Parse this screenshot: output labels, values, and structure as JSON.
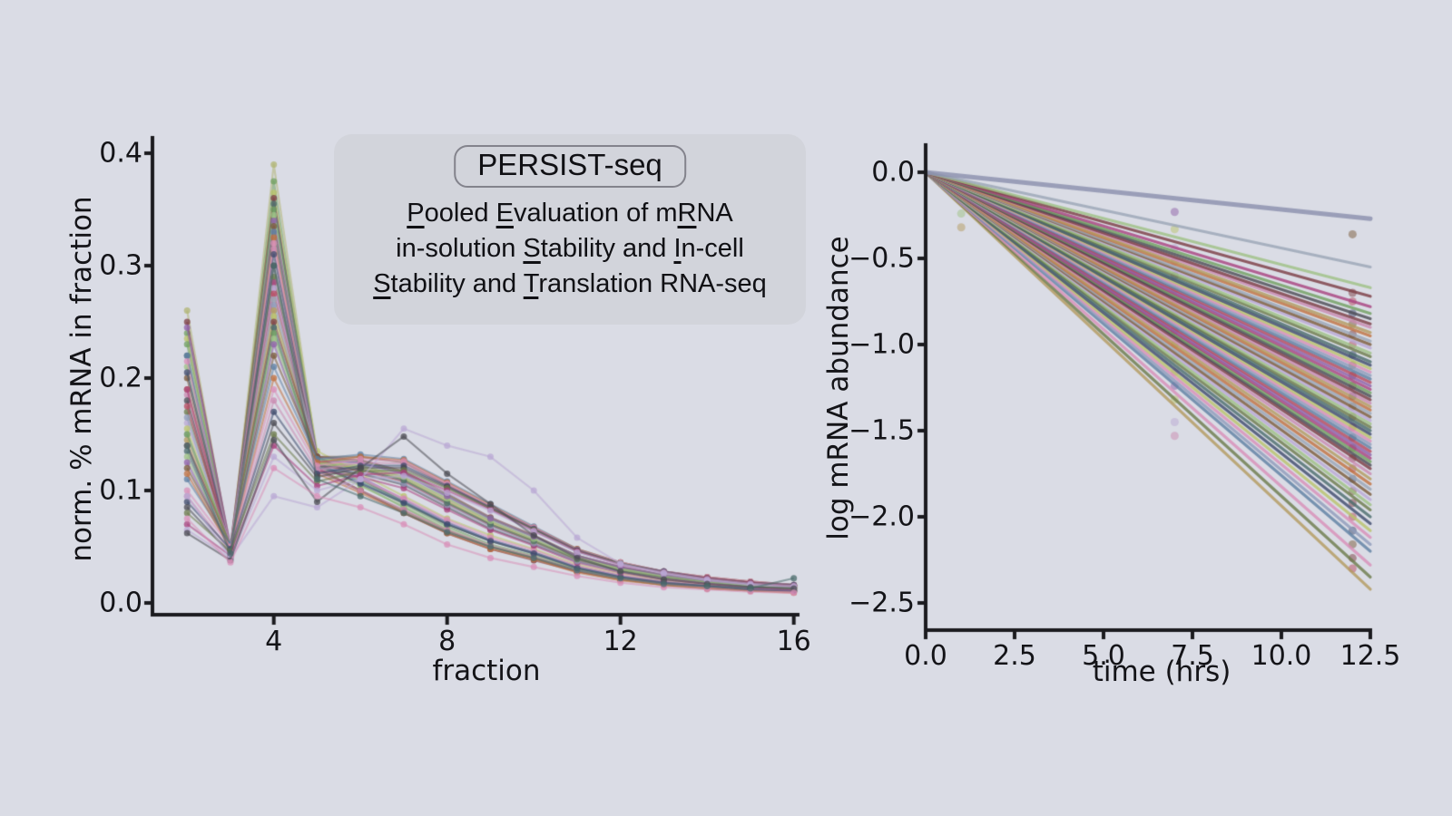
{
  "page": {
    "background": "#dadce5",
    "text_color": "#141418",
    "axis_color": "#1b1b1f"
  },
  "title_card": {
    "badge": "PERSIST-seq",
    "subtitle_lines": [
      "_P_ooled _E_valuation of m_R_NA",
      "in-solution _S_tability and _I_n-cell",
      "_S_tability and _T_ranslation RNA-seq"
    ],
    "card_bg": "#d2d4db",
    "badge_border": "#83838c"
  },
  "palette": [
    "#8f9bba",
    "#7b3b42",
    "#9dc183",
    "#5e7fa3",
    "#c98ab0",
    "#6b7a4a",
    "#b5485d",
    "#b39a5e",
    "#4a6b6b",
    "#8d5fa8",
    "#c0703f",
    "#3d4a6b",
    "#a8417e",
    "#9aa5b5",
    "#b9c36a",
    "#6f9f5f",
    "#7a5a3a",
    "#d88fb8",
    "#4a4a52",
    "#b9a8d4"
  ],
  "chart_data": [
    {
      "type": "line",
      "title": "",
      "xlabel": "fraction",
      "ylabel": "norm. % mRNA in fraction",
      "x": [
        2,
        3,
        4,
        5,
        6,
        7,
        8,
        9,
        10,
        11,
        12,
        13,
        14,
        15,
        16
      ],
      "xlim": [
        1.2,
        16.3
      ],
      "ylim": [
        0,
        0.4
      ],
      "grid": false,
      "xticks": [
        4,
        8,
        12,
        16
      ],
      "xtick_labels": [
        "4",
        "8",
        "12",
        "16"
      ],
      "yticks": [
        0,
        0.1,
        0.2,
        0.3,
        0.4
      ],
      "ytick_labels": [
        "0.0",
        "0.1",
        "0.2",
        "0.3",
        "0.4"
      ],
      "series": [
        [
          0.26,
          0.045,
          0.39,
          0.13,
          0.11,
          0.09,
          0.07,
          0.055,
          0.045,
          0.032,
          0.024,
          0.019,
          0.016,
          0.013,
          0.012
        ],
        [
          0.24,
          0.042,
          0.375,
          0.125,
          0.105,
          0.085,
          0.065,
          0.05,
          0.04,
          0.03,
          0.022,
          0.018,
          0.015,
          0.012,
          0.011
        ],
        [
          0.235,
          0.048,
          0.365,
          0.135,
          0.115,
          0.095,
          0.075,
          0.06,
          0.048,
          0.034,
          0.026,
          0.02,
          0.017,
          0.014,
          0.012
        ],
        [
          0.25,
          0.05,
          0.36,
          0.12,
          0.1,
          0.08,
          0.062,
          0.048,
          0.038,
          0.028,
          0.021,
          0.017,
          0.014,
          0.012,
          0.01
        ],
        [
          0.22,
          0.04,
          0.355,
          0.13,
          0.11,
          0.09,
          0.07,
          0.055,
          0.044,
          0.031,
          0.023,
          0.018,
          0.015,
          0.012,
          0.011
        ],
        [
          0.23,
          0.046,
          0.35,
          0.128,
          0.108,
          0.088,
          0.068,
          0.052,
          0.042,
          0.03,
          0.022,
          0.017,
          0.014,
          0.012,
          0.01
        ],
        [
          0.21,
          0.043,
          0.345,
          0.122,
          0.104,
          0.086,
          0.066,
          0.051,
          0.041,
          0.029,
          0.021,
          0.016,
          0.013,
          0.011,
          0.01
        ],
        [
          0.245,
          0.05,
          0.34,
          0.13,
          0.112,
          0.092,
          0.072,
          0.056,
          0.045,
          0.032,
          0.024,
          0.018,
          0.015,
          0.013,
          0.011
        ],
        [
          0.2,
          0.044,
          0.335,
          0.118,
          0.1,
          0.082,
          0.064,
          0.05,
          0.04,
          0.028,
          0.021,
          0.016,
          0.013,
          0.011,
          0.01
        ],
        [
          0.22,
          0.047,
          0.33,
          0.125,
          0.107,
          0.09,
          0.071,
          0.056,
          0.045,
          0.032,
          0.024,
          0.019,
          0.015,
          0.013,
          0.011
        ],
        [
          0.19,
          0.041,
          0.325,
          0.115,
          0.098,
          0.08,
          0.062,
          0.048,
          0.039,
          0.027,
          0.02,
          0.016,
          0.013,
          0.011,
          0.009
        ],
        [
          0.215,
          0.049,
          0.32,
          0.127,
          0.11,
          0.093,
          0.074,
          0.058,
          0.047,
          0.033,
          0.025,
          0.019,
          0.016,
          0.013,
          0.011
        ],
        [
          0.185,
          0.042,
          0.315,
          0.117,
          0.1,
          0.083,
          0.065,
          0.051,
          0.041,
          0.029,
          0.022,
          0.017,
          0.014,
          0.012,
          0.01
        ],
        [
          0.205,
          0.046,
          0.31,
          0.123,
          0.106,
          0.089,
          0.07,
          0.055,
          0.044,
          0.031,
          0.023,
          0.018,
          0.015,
          0.012,
          0.011
        ],
        [
          0.18,
          0.045,
          0.3,
          0.12,
          0.115,
          0.105,
          0.085,
          0.066,
          0.052,
          0.037,
          0.028,
          0.022,
          0.018,
          0.015,
          0.013
        ],
        [
          0.17,
          0.05,
          0.29,
          0.125,
          0.12,
          0.11,
          0.09,
          0.07,
          0.055,
          0.039,
          0.029,
          0.023,
          0.019,
          0.015,
          0.013
        ],
        [
          0.19,
          0.048,
          0.285,
          0.118,
          0.112,
          0.102,
          0.083,
          0.065,
          0.051,
          0.036,
          0.027,
          0.021,
          0.017,
          0.014,
          0.012
        ],
        [
          0.16,
          0.052,
          0.28,
          0.13,
          0.125,
          0.115,
          0.095,
          0.074,
          0.058,
          0.041,
          0.031,
          0.024,
          0.02,
          0.016,
          0.014
        ],
        [
          0.175,
          0.046,
          0.275,
          0.122,
          0.118,
          0.108,
          0.088,
          0.069,
          0.054,
          0.038,
          0.029,
          0.022,
          0.018,
          0.015,
          0.013
        ],
        [
          0.15,
          0.05,
          0.27,
          0.128,
          0.124,
          0.114,
          0.094,
          0.073,
          0.057,
          0.04,
          0.03,
          0.024,
          0.019,
          0.016,
          0.014
        ],
        [
          0.165,
          0.044,
          0.265,
          0.12,
          0.116,
          0.106,
          0.087,
          0.068,
          0.053,
          0.037,
          0.028,
          0.022,
          0.018,
          0.015,
          0.013
        ],
        [
          0.145,
          0.049,
          0.26,
          0.126,
          0.122,
          0.112,
          0.092,
          0.072,
          0.056,
          0.04,
          0.03,
          0.023,
          0.019,
          0.016,
          0.014
        ],
        [
          0.155,
          0.047,
          0.255,
          0.124,
          0.12,
          0.11,
          0.09,
          0.071,
          0.055,
          0.039,
          0.029,
          0.023,
          0.019,
          0.015,
          0.013
        ],
        [
          0.14,
          0.051,
          0.25,
          0.13,
          0.127,
          0.117,
          0.097,
          0.076,
          0.06,
          0.042,
          0.032,
          0.025,
          0.02,
          0.017,
          0.014
        ],
        [
          0.135,
          0.045,
          0.245,
          0.122,
          0.119,
          0.109,
          0.089,
          0.07,
          0.055,
          0.039,
          0.029,
          0.023,
          0.019,
          0.015,
          0.013
        ],
        [
          0.15,
          0.05,
          0.24,
          0.128,
          0.126,
          0.116,
          0.096,
          0.075,
          0.059,
          0.042,
          0.031,
          0.025,
          0.02,
          0.017,
          0.014
        ],
        [
          0.13,
          0.046,
          0.235,
          0.124,
          0.122,
          0.112,
          0.093,
          0.073,
          0.057,
          0.04,
          0.03,
          0.024,
          0.019,
          0.016,
          0.014
        ],
        [
          0.125,
          0.048,
          0.23,
          0.126,
          0.125,
          0.115,
          0.095,
          0.075,
          0.059,
          0.042,
          0.032,
          0.025,
          0.02,
          0.017,
          0.015
        ],
        [
          0.12,
          0.05,
          0.22,
          0.13,
          0.13,
          0.125,
          0.105,
          0.085,
          0.066,
          0.047,
          0.035,
          0.028,
          0.022,
          0.018,
          0.016
        ],
        [
          0.11,
          0.052,
          0.21,
          0.128,
          0.132,
          0.128,
          0.108,
          0.088,
          0.068,
          0.048,
          0.036,
          0.028,
          0.023,
          0.019,
          0.016
        ],
        [
          0.115,
          0.048,
          0.2,
          0.125,
          0.13,
          0.127,
          0.107,
          0.087,
          0.067,
          0.048,
          0.036,
          0.028,
          0.023,
          0.019,
          0.016
        ],
        [
          0.1,
          0.05,
          0.19,
          0.122,
          0.128,
          0.126,
          0.106,
          0.086,
          0.067,
          0.047,
          0.036,
          0.028,
          0.023,
          0.019,
          0.016
        ],
        [
          0.095,
          0.046,
          0.18,
          0.118,
          0.125,
          0.124,
          0.105,
          0.085,
          0.066,
          0.047,
          0.035,
          0.028,
          0.022,
          0.018,
          0.016
        ],
        [
          0.09,
          0.048,
          0.17,
          0.115,
          0.122,
          0.122,
          0.104,
          0.085,
          0.066,
          0.047,
          0.035,
          0.028,
          0.022,
          0.018,
          0.016
        ],
        [
          0.085,
          0.044,
          0.16,
          0.112,
          0.12,
          0.12,
          0.103,
          0.084,
          0.065,
          0.046,
          0.035,
          0.027,
          0.022,
          0.018,
          0.015
        ],
        [
          0.08,
          0.046,
          0.15,
          0.108,
          0.117,
          0.118,
          0.102,
          0.084,
          0.065,
          0.046,
          0.035,
          0.027,
          0.022,
          0.018,
          0.015
        ],
        [
          0.07,
          0.042,
          0.14,
          0.104,
          0.114,
          0.116,
          0.1,
          0.083,
          0.064,
          0.046,
          0.034,
          0.027,
          0.022,
          0.018,
          0.015
        ],
        [
          0.065,
          0.04,
          0.13,
          0.1,
          0.11,
          0.113,
          0.098,
          0.082,
          0.064,
          0.045,
          0.034,
          0.027,
          0.021,
          0.017,
          0.015
        ],
        [
          0.095,
          0.04,
          0.095,
          0.085,
          0.11,
          0.155,
          0.14,
          0.13,
          0.1,
          0.058,
          0.035,
          0.026,
          0.02,
          0.016,
          0.014
        ],
        [
          0.062,
          0.038,
          0.145,
          0.09,
          0.12,
          0.148,
          0.115,
          0.088,
          0.06,
          0.04,
          0.028,
          0.021,
          0.017,
          0.014,
          0.013
        ],
        [
          0.075,
          0.036,
          0.12,
          0.095,
          0.085,
          0.07,
          0.052,
          0.04,
          0.032,
          0.024,
          0.018,
          0.014,
          0.012,
          0.01,
          0.009
        ],
        [
          0.14,
          0.044,
          0.3,
          0.11,
          0.095,
          0.08,
          0.063,
          0.05,
          0.04,
          0.029,
          0.022,
          0.017,
          0.015,
          0.013,
          0.022
        ]
      ],
      "color_overrides": {
        "0": "#b0b472",
        "1": "#6f9f5f",
        "38": "#b9a8d4",
        "39": "#4a4a52",
        "40": "#d88fb8",
        "41": "#4a6b6b"
      }
    },
    {
      "type": "line",
      "title": "",
      "xlabel": "time (hrs)",
      "ylabel": "log mRNA abundance",
      "xlim": [
        0,
        12.5
      ],
      "ylim": [
        -2.6,
        0.05
      ],
      "grid": false,
      "xticks": [
        0,
        2.5,
        5,
        7.5,
        10,
        12.5
      ],
      "xtick_labels": [
        "0.0",
        "2.5",
        "5.0",
        "7.5",
        "10.0",
        "12.5"
      ],
      "yticks": [
        0,
        -0.5,
        -1,
        -1.5,
        -2,
        -2.5
      ],
      "ytick_labels": [
        "0.0",
        "−0.5",
        "−1.0",
        "−1.5",
        "−2.0",
        "−2.5"
      ],
      "lines_from_origin": {
        "x_start": 0,
        "y_start": 0,
        "x_end": 12.5,
        "end_values": [
          -0.27,
          -0.55,
          -0.67,
          -0.72,
          -0.78,
          -0.82,
          -0.85,
          -0.88,
          -0.9,
          -0.93,
          -0.95,
          -0.98,
          -1.0,
          -1.02,
          -1.05,
          -1.07,
          -1.1,
          -1.12,
          -1.14,
          -1.16,
          -1.18,
          -1.2,
          -1.22,
          -1.24,
          -1.26,
          -1.28,
          -1.3,
          -1.32,
          -1.34,
          -1.36,
          -1.38,
          -1.4,
          -1.42,
          -1.44,
          -1.46,
          -1.48,
          -1.5,
          -1.52,
          -1.54,
          -1.56,
          -1.58,
          -1.6,
          -1.62,
          -1.64,
          -1.66,
          -1.68,
          -1.7,
          -1.72,
          -1.75,
          -1.78,
          -1.81,
          -1.84,
          -1.87,
          -1.9,
          -1.93,
          -1.96,
          -2.0,
          -2.04,
          -2.08,
          -2.12,
          -2.16,
          -2.2,
          -2.28,
          -2.35,
          -2.42
        ]
      },
      "color_overrides": {
        "0": "#8a8fad",
        "1": "#9aa5b5",
        "2": "#9dc183",
        "3": "#7b3b42",
        "62": "#d88fb8",
        "63": "#6b7a4a",
        "64": "#b39a5e"
      },
      "width_overrides": {
        "0": 5
      },
      "scatter": [
        {
          "x": 1,
          "ys": [
            -0.24,
            -0.32
          ]
        },
        {
          "x": 7,
          "ys": [
            -0.23,
            -0.33,
            -0.44,
            -0.52,
            -0.6,
            -0.68,
            -0.76,
            -0.84,
            -0.92,
            -1.0,
            -1.08,
            -1.16,
            -1.24,
            -1.32,
            -1.45,
            -1.53
          ]
        },
        {
          "x": 12,
          "ys": [
            -0.36,
            -0.7,
            -0.75,
            -0.82,
            -0.88,
            -0.94,
            -1.0,
            -1.06,
            -1.12,
            -1.18,
            -1.24,
            -1.3,
            -1.36,
            -1.42,
            -1.48,
            -1.54,
            -1.6,
            -1.66,
            -1.72,
            -1.78,
            -1.85,
            -1.92,
            -2.0,
            -2.08,
            -2.16,
            -2.24,
            -2.3
          ]
        }
      ]
    }
  ]
}
